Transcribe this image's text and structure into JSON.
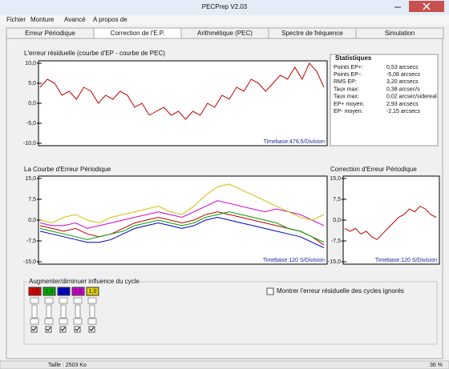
{
  "window": {
    "title": "PECPrep V2.03"
  },
  "menu": [
    "Fichier",
    "Monture",
    "Avancé",
    "A propos de"
  ],
  "tabs": [
    "Erreur Périodique",
    "Correction de l'E.P.",
    "Arithmétique (PEC)",
    "Spectre de fréquence",
    "Simulation"
  ],
  "residual": {
    "title": "L'erreur résiduelle (courbe d'EP - courbe de PEC)",
    "timebase": "Timebase:476,5/Division",
    "ylim": [
      -10,
      10
    ],
    "yticks": [
      {
        "value": 10,
        "label": "10,0"
      },
      {
        "value": 5,
        "label": "5,0"
      },
      {
        "value": 0,
        "label": "0,0"
      },
      {
        "value": -5,
        "label": "-5,0"
      },
      {
        "value": -10,
        "label": "-10,0"
      }
    ],
    "color": "#c00000",
    "values": [
      4,
      6,
      5,
      2,
      3,
      1,
      4,
      3,
      0,
      2,
      1,
      3,
      2,
      -1,
      0,
      -3,
      -2,
      -1,
      -3,
      -2,
      -4,
      -2,
      -3,
      0,
      -1,
      2,
      1,
      4,
      3,
      6,
      5,
      3,
      5,
      7,
      6,
      9,
      6,
      10,
      8,
      4
    ]
  },
  "statistics": {
    "title": "Statistiques",
    "rows": [
      [
        "Points EP+:",
        "0,53 arcsecs"
      ],
      [
        "Points EP-:",
        "-5,08 arcsecs"
      ],
      [
        "RMS EP:",
        "3,20 arcsecs"
      ],
      [
        "Taux max:",
        "0,38 arcsec/s"
      ],
      [
        "Taux max:",
        "0,02 arcsec/sidereal"
      ],
      [
        "EP+ moyen:",
        "2,93 arcsecs"
      ],
      [
        "EP- moyen:",
        "-2,15 arcsecs"
      ]
    ]
  },
  "pe_curve": {
    "title": "La Courbe d'Erreur Périodique",
    "timebase": "Timebase:120 S/Division",
    "ylim": [
      -15,
      15
    ],
    "yticks": [
      {
        "value": 15,
        "label": "15,0"
      },
      {
        "value": 7.5,
        "label": "7,5"
      },
      {
        "value": 0,
        "label": "0,0"
      },
      {
        "value": -7.5,
        "label": "-7,5"
      },
      {
        "value": -15,
        "label": "-15,0"
      }
    ],
    "series": [
      {
        "color": "#c00000",
        "values": [
          -2,
          -3,
          -4,
          -3,
          -5,
          -6,
          -5,
          -3,
          -1,
          0,
          1,
          0,
          -1,
          0,
          2,
          3,
          2,
          1,
          0,
          -1,
          -2,
          -3,
          -4,
          -6,
          -9
        ]
      },
      {
        "color": "#00a000",
        "values": [
          -3,
          -4,
          -5,
          -6,
          -7,
          -6,
          -5,
          -4,
          -2,
          -1,
          0,
          -1,
          -2,
          -1,
          1,
          2,
          3,
          2,
          1,
          0,
          -1,
          -3,
          -4,
          -6,
          -8
        ]
      },
      {
        "color": "#0000c0",
        "values": [
          -4,
          -5,
          -6,
          -7,
          -8,
          -8,
          -7,
          -5,
          -3,
          -2,
          -1,
          -2,
          -3,
          -2,
          0,
          1,
          0,
          -1,
          -2,
          -3,
          -4,
          -5,
          -6,
          -8,
          -10
        ]
      },
      {
        "color": "#d000d0",
        "values": [
          -1,
          -2,
          -2,
          -1,
          -3,
          -2,
          -1,
          0,
          1,
          2,
          3,
          2,
          1,
          3,
          5,
          7,
          6,
          5,
          4,
          3,
          4,
          3,
          2,
          0,
          -2
        ]
      },
      {
        "color": "#d0c000",
        "values": [
          0,
          -1,
          1,
          2,
          0,
          -1,
          1,
          2,
          3,
          4,
          5,
          3,
          2,
          5,
          9,
          12,
          13,
          11,
          9,
          7,
          5,
          3,
          1,
          0,
          2
        ]
      }
    ]
  },
  "correction": {
    "title": "Correction d'Erreur Périodique",
    "timebase": "Timebase:120 S/Division",
    "ylim": [
      -15,
      15
    ],
    "yticks": [
      {
        "value": 15,
        "label": "15,0"
      },
      {
        "value": 7.5,
        "label": "7,5"
      },
      {
        "value": 0,
        "label": "0,0"
      },
      {
        "value": -7.5,
        "label": "-7,5"
      },
      {
        "value": -15,
        "label": "-15,0"
      }
    ],
    "color": "#c00000",
    "values": [
      -3,
      -4,
      -3,
      -5,
      -4,
      -6,
      -7,
      -5,
      -3,
      -1,
      1,
      2,
      4,
      3,
      5,
      4,
      2,
      1
    ]
  },
  "cycle_group": {
    "title": "Augmenter/diminuer influence du cycle",
    "factors": [
      {
        "label": "1,0",
        "color": "#e00000"
      },
      {
        "label": "1,0",
        "color": "#00b000"
      },
      {
        "label": "1,0",
        "color": "#0000d0"
      },
      {
        "label": "1,0",
        "color": "#d000d0"
      },
      {
        "label": "1,0",
        "color": "#e0d000"
      }
    ],
    "checkbox": "Montrer l'erreur résiduelle des cycles ignorés"
  },
  "status": [
    "Taille : 2503 Ko",
    "36 %"
  ]
}
